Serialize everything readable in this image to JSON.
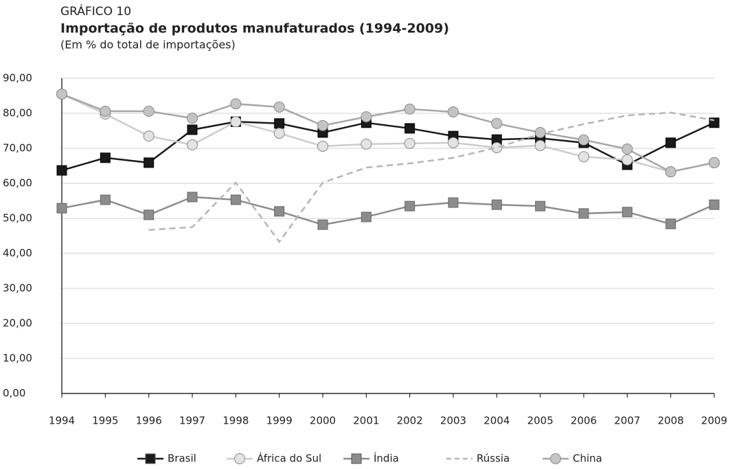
{
  "chart_data": {
    "type": "line",
    "label": "GRÁFICO 10",
    "title": "Importação de produtos manufaturados (1994-2009)",
    "subtitle": "(Em % do total de importações)",
    "categories": [
      "1994",
      "1995",
      "1996",
      "1997",
      "1998",
      "1999",
      "2000",
      "2001",
      "2002",
      "2003",
      "2004",
      "2005",
      "2006",
      "2007",
      "2008",
      "2009"
    ],
    "ylim": [
      0,
      90
    ],
    "yticks": [
      {
        "value": 0,
        "label": "0,00"
      },
      {
        "value": 10,
        "label": "10,00"
      },
      {
        "value": 20,
        "label": "20,00"
      },
      {
        "value": 30,
        "label": "30,00"
      },
      {
        "value": 40,
        "label": "40,00"
      },
      {
        "value": 50,
        "label": "50,00"
      },
      {
        "value": 60,
        "label": "60,00"
      },
      {
        "value": 70,
        "label": "70,00"
      },
      {
        "value": 80,
        "label": "80,00"
      },
      {
        "value": 90,
        "label": "90,00"
      }
    ],
    "grid": true,
    "legend": "bottom",
    "series": [
      {
        "name": "Brasil",
        "color": "#1a1a1a",
        "marker": "square",
        "marker_fill": "#1a1a1a",
        "dashed": false,
        "values": [
          63.7,
          67.3,
          65.9,
          75.3,
          77.6,
          77.1,
          74.5,
          77.3,
          75.7,
          73.5,
          72.5,
          72.9,
          71.6,
          65.3,
          71.6,
          77.3
        ]
      },
      {
        "name": "África do Sul",
        "color": "#cccccc",
        "marker": "circle",
        "marker_fill": "#e3e3e3",
        "dashed": false,
        "values": [
          85.5,
          79.8,
          73.5,
          71.0,
          77.6,
          74.3,
          70.6,
          71.2,
          71.4,
          71.6,
          70.2,
          70.8,
          67.6,
          66.7,
          63.3,
          65.9
        ]
      },
      {
        "name": "Índia",
        "color": "#8c8c8c",
        "marker": "square",
        "marker_fill": "#8c8c8c",
        "dashed": false,
        "values": [
          52.9,
          55.3,
          51.0,
          56.1,
          55.3,
          52.0,
          48.2,
          50.4,
          53.5,
          54.5,
          53.9,
          53.5,
          51.4,
          51.8,
          48.4,
          53.9
        ]
      },
      {
        "name": "Rússia",
        "color": "#b5b5b5",
        "marker": "none",
        "marker_fill": "#b5b5b5",
        "dashed": true,
        "values": [
          null,
          null,
          46.7,
          47.5,
          60.2,
          43.3,
          60.2,
          64.5,
          65.7,
          67.3,
          70.2,
          74.1,
          76.9,
          79.4,
          80.2,
          78.0
        ]
      },
      {
        "name": "China",
        "color": "#a6a6a6",
        "marker": "circle",
        "marker_fill": "#c4c4c4",
        "dashed": false,
        "values": [
          85.5,
          80.6,
          80.6,
          78.6,
          82.7,
          81.8,
          76.5,
          79.0,
          81.2,
          80.4,
          77.1,
          74.5,
          72.4,
          69.8,
          63.3,
          65.9
        ]
      }
    ]
  }
}
